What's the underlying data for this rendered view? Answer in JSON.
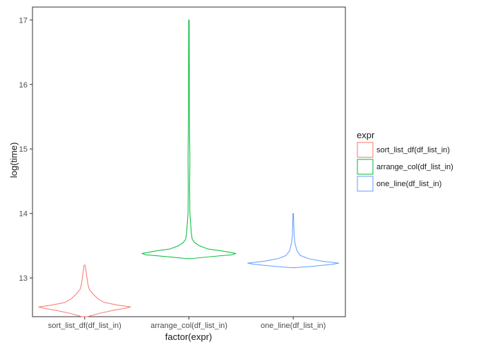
{
  "chart_data": {
    "type": "violin",
    "xlabel": "factor(expr)",
    "ylabel": "log(time)",
    "ylim": [
      12.4,
      17.2
    ],
    "yticks": [
      13,
      14,
      15,
      16,
      17
    ],
    "grid": false,
    "legend": {
      "title": "expr",
      "placement": "right"
    },
    "categories": [
      "sort_list_df(df_list_in)",
      "arrange_col(df_list_in)",
      "one_line(df_list_in)"
    ],
    "series": [
      {
        "name": "sort_list_df(df_list_in)",
        "color": "#f8766d",
        "profile": [
          [
            12.4,
            0.06
          ],
          [
            12.45,
            0.3
          ],
          [
            12.5,
            0.62
          ],
          [
            12.53,
            0.86
          ],
          [
            12.55,
            0.98
          ],
          [
            12.58,
            0.7
          ],
          [
            12.62,
            0.42
          ],
          [
            12.68,
            0.28
          ],
          [
            12.75,
            0.18
          ],
          [
            12.82,
            0.1
          ],
          [
            12.9,
            0.07
          ],
          [
            13.0,
            0.05
          ],
          [
            13.1,
            0.03
          ],
          [
            13.2,
            0.01
          ]
        ]
      },
      {
        "name": "arrange_col(df_list_in)",
        "color": "#00ba38",
        "profile": [
          [
            13.3,
            0.05
          ],
          [
            13.33,
            0.45
          ],
          [
            13.36,
            0.92
          ],
          [
            13.38,
            1.0
          ],
          [
            13.42,
            0.7
          ],
          [
            13.45,
            0.4
          ],
          [
            13.5,
            0.22
          ],
          [
            13.55,
            0.12
          ],
          [
            13.6,
            0.07
          ],
          [
            13.7,
            0.05
          ],
          [
            13.8,
            0.04
          ],
          [
            14.0,
            0.02
          ],
          [
            14.4,
            0.015
          ],
          [
            14.85,
            0.02
          ],
          [
            15.5,
            0.01
          ],
          [
            17.0,
            0.005
          ]
        ]
      },
      {
        "name": "one_line(df_list_in)",
        "color": "#619cff",
        "profile": [
          [
            13.16,
            0.05
          ],
          [
            13.18,
            0.4
          ],
          [
            13.21,
            0.82
          ],
          [
            13.23,
            0.97
          ],
          [
            13.26,
            0.62
          ],
          [
            13.3,
            0.32
          ],
          [
            13.35,
            0.15
          ],
          [
            13.42,
            0.08
          ],
          [
            13.5,
            0.05
          ],
          [
            13.55,
            0.035
          ],
          [
            13.65,
            0.02
          ],
          [
            13.8,
            0.012
          ],
          [
            14.0,
            0.006
          ]
        ]
      }
    ]
  }
}
